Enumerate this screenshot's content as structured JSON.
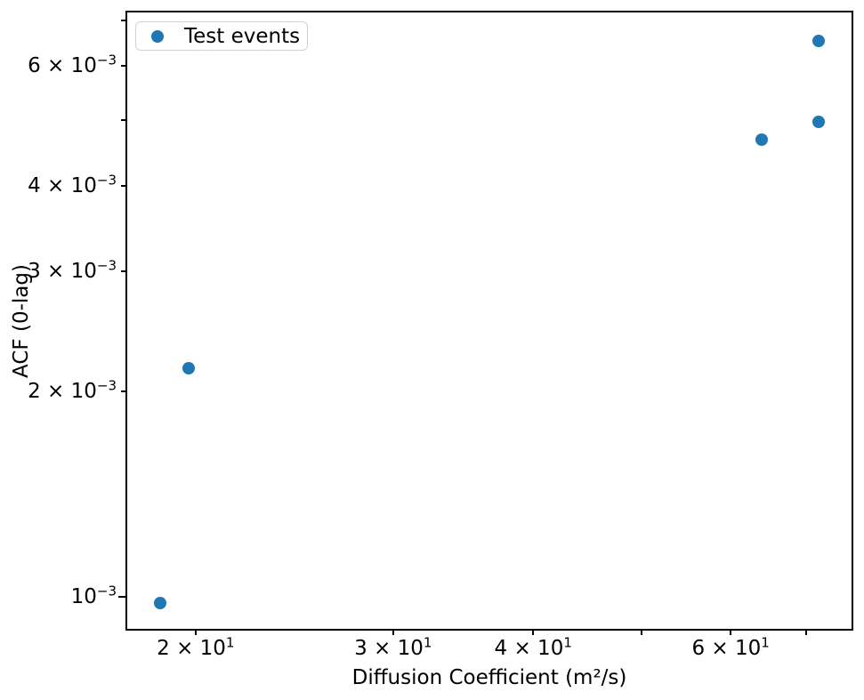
{
  "figure": {
    "background": "#ffffff",
    "text_color": "#000000",
    "spine_color": "#000000"
  },
  "chart_data": {
    "type": "scatter",
    "xlabel": "Diffusion Coefficient (m²/s)",
    "ylabel": "ACF (0-lag)",
    "x_scale": "log",
    "y_scale": "log",
    "xlim": [
      17.35,
      76.9
    ],
    "ylim": [
      0.000897,
      0.00721
    ],
    "grid": false,
    "marker_color": "#1f77b4",
    "legend": {
      "position": "upper left",
      "label": "Test events",
      "border_color": "#d2d2d2"
    },
    "series": [
      {
        "name": "Test events",
        "points": [
          {
            "x": 18.6,
            "y": 0.00098
          },
          {
            "x": 19.7,
            "y": 0.00216
          },
          {
            "x": 64.0,
            "y": 0.00468
          },
          {
            "x": 71.9,
            "y": 0.00497
          },
          {
            "x": 71.9,
            "y": 0.00653
          }
        ]
      }
    ],
    "x_ticks": [
      {
        "value": 20,
        "base": "2 × 10",
        "exp": "1"
      },
      {
        "value": 30,
        "base": "3 × 10",
        "exp": "1"
      },
      {
        "value": 40,
        "base": "4 × 10",
        "exp": "1"
      },
      {
        "value": 50
      },
      {
        "value": 60,
        "base": "6 × 10",
        "exp": "1"
      },
      {
        "value": 70
      }
    ],
    "y_ticks": [
      {
        "value": 0.007
      },
      {
        "value": 0.006,
        "base": "6 × 10",
        "exp": "−3"
      },
      {
        "value": 0.005
      },
      {
        "value": 0.004,
        "base": "4 × 10",
        "exp": "−3"
      },
      {
        "value": 0.003,
        "base": "3 × 10",
        "exp": "−3"
      },
      {
        "value": 0.002,
        "base": "2 × 10",
        "exp": "−3"
      },
      {
        "value": 0.001,
        "base": "10",
        "exp": "−3",
        "major": true
      }
    ]
  }
}
